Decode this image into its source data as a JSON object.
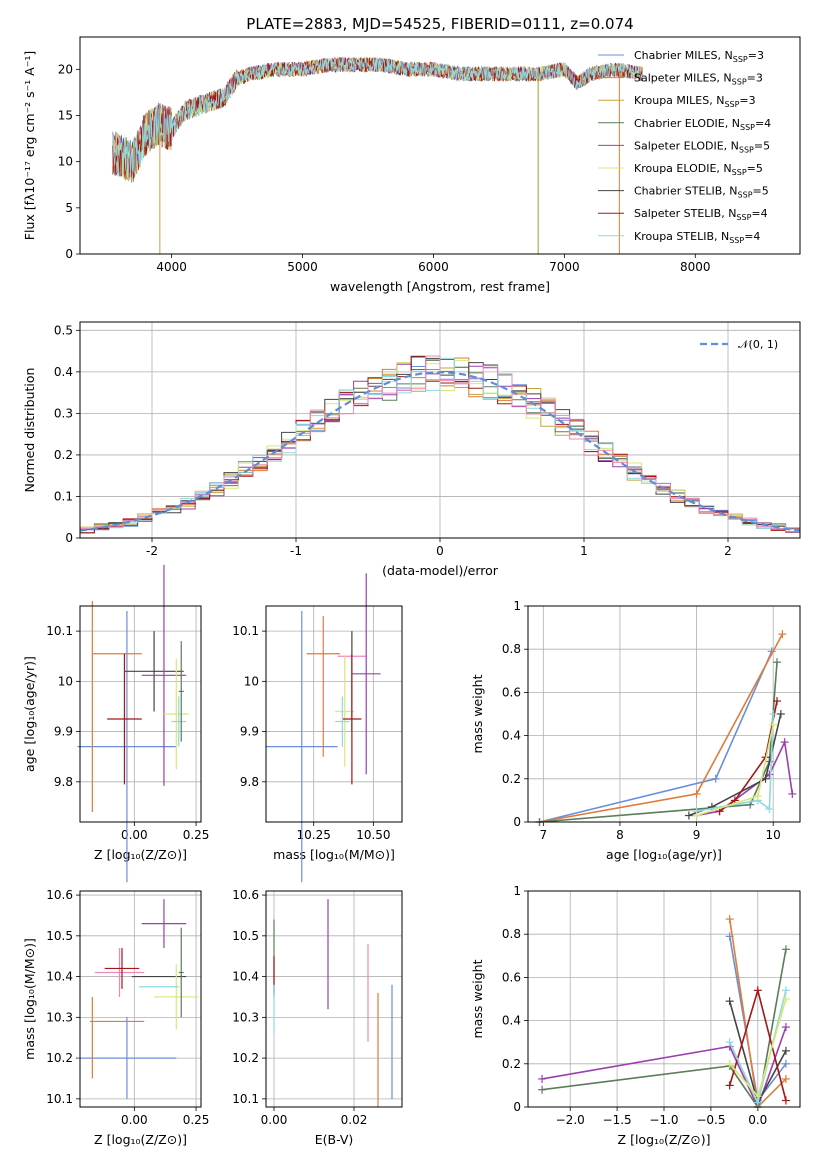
{
  "chart_data": [
    {
      "id": "spectrum",
      "type": "line",
      "title": "PLATE=2883, MJD=54525, FIBERID=0111, z=0.074",
      "xlabel": "wavelength [Angstrom, rest frame]",
      "ylabel": "Flux [fλ10⁻¹⁷ erg cm⁻² s⁻¹ A⁻¹]",
      "xlim": [
        3300,
        8800
      ],
      "ylim": [
        0,
        23.5
      ],
      "xticks": [
        4000,
        5000,
        6000,
        7000,
        8000
      ],
      "yticks": [
        0,
        5,
        10,
        15,
        20
      ],
      "grid": false,
      "legend_position": "top-right",
      "legend": [
        {
          "label": "Chabrier MILES, N",
          "sub": "SSP",
          "suffix": "=3",
          "color": "#6a8fd8"
        },
        {
          "label": "Salpeter MILES, N",
          "sub": "SSP",
          "suffix": "=3",
          "color": "#e07b39"
        },
        {
          "label": "Kroupa MILES, N",
          "sub": "SSP",
          "suffix": "=3",
          "color": "#c8a23a"
        },
        {
          "label": "Chabrier ELODIE, N",
          "sub": "SSP",
          "suffix": "=4",
          "color": "#5a7d5a"
        },
        {
          "label": "Salpeter ELODIE, N",
          "sub": "SSP",
          "suffix": "=5",
          "color": "#9b3fb0"
        },
        {
          "label": "Kroupa ELODIE, N",
          "sub": "SSP",
          "suffix": "=5",
          "color": "#d8e878"
        },
        {
          "label": "Chabrier STELIB, N",
          "sub": "SSP",
          "suffix": "=5",
          "color": "#444444"
        },
        {
          "label": "Salpeter STELIB, N",
          "sub": "SSP",
          "suffix": "=4",
          "color": "#a01818"
        },
        {
          "label": "Kroupa STELIB, N",
          "sub": "SSP",
          "suffix": "=4",
          "color": "#8fd8e0"
        }
      ],
      "continuum": {
        "x": [
          3550,
          3700,
          3800,
          3900,
          4000,
          4100,
          4200,
          4400,
          4500,
          4600,
          4800,
          5000,
          5200,
          5400,
          5600,
          5800,
          6000,
          6200,
          6400,
          6600,
          6800,
          7000,
          7100,
          7200,
          7400,
          7600
        ],
        "y": [
          11,
          10,
          13,
          14,
          13.5,
          15.5,
          16,
          17,
          19,
          19.5,
          20,
          20,
          20.5,
          20.5,
          20.5,
          20,
          20,
          19.5,
          19.5,
          19.5,
          19.5,
          20,
          18.5,
          19.5,
          20,
          19.5
        ]
      },
      "dips": [
        3910,
        6800,
        7420
      ]
    },
    {
      "id": "residuals",
      "type": "bar",
      "xlabel": "(data-model)/error",
      "ylabel": "Normed distribution",
      "xlim": [
        -2.5,
        2.5
      ],
      "ylim": [
        0,
        0.52
      ],
      "xticks": [
        -2,
        -1,
        0,
        1,
        2
      ],
      "yticks": [
        0.0,
        0.1,
        0.2,
        0.3,
        0.4,
        0.5
      ],
      "grid": true,
      "legend_position": "top-right",
      "reference": {
        "label": "𝒩(0, 1)",
        "color": "#5b8fd8"
      },
      "bin_width": 0.1
    },
    {
      "id": "z-age",
      "type": "scatter",
      "xlabel": "Z [log₁₀(Z/Z⊙)]",
      "ylabel": "age  [log₁₀(age/yr)]",
      "xlim": [
        -0.22,
        0.27
      ],
      "ylim": [
        9.72,
        10.15
      ],
      "xticks": [
        0.0,
        0.25
      ],
      "xtick_labels": [
        "0.00",
        "0.25"
      ],
      "yticks": [
        9.8,
        9.9,
        10.0,
        10.1
      ],
      "grid": true,
      "points": [
        {
          "x": -0.03,
          "y": 9.87,
          "xerr": 0.2,
          "yerr": 0.27,
          "color": "#6a8fd8"
        },
        {
          "x": -0.07,
          "y": 10.055,
          "xerr": 0.1,
          "yerr": 0.0,
          "color": "#e07b39"
        },
        {
          "x": -0.17,
          "y": 9.95,
          "xerr": 0.0,
          "yerr": 0.21,
          "color": "#e07b39"
        },
        {
          "x": 0.08,
          "y": 10.02,
          "xerr": 0.12,
          "yerr": 0.08,
          "color": "#444444"
        },
        {
          "x": 0.12,
          "y": 10.012,
          "xerr": 0.09,
          "yerr": 0.22,
          "color": "#9b3fb0"
        },
        {
          "x": 0.17,
          "y": 9.935,
          "xerr": 0.05,
          "yerr": 0.11,
          "color": "#d8e878"
        },
        {
          "x": -0.04,
          "y": 9.925,
          "xerr": 0.07,
          "yerr": 0.13,
          "color": "#a01818"
        },
        {
          "x": 0.18,
          "y": 9.92,
          "xerr": 0.03,
          "yerr": 0.05,
          "color": "#8fd8e0"
        },
        {
          "x": 0.19,
          "y": 9.98,
          "xerr": 0.01,
          "yerr": 0.1,
          "color": "#5a7d5a"
        }
      ]
    },
    {
      "id": "mass-age",
      "type": "scatter",
      "xlabel": "mass [log₁₀(M/M⊙)]",
      "ylabel": "",
      "xlim": [
        10.05,
        10.62
      ],
      "ylim": [
        9.72,
        10.15
      ],
      "xticks": [
        10.25,
        10.5
      ],
      "xtick_labels": [
        "10.25",
        "10.50"
      ],
      "yticks": [
        9.8,
        9.9,
        10.0,
        10.1
      ],
      "grid": true,
      "points": [
        {
          "x": 10.2,
          "y": 9.87,
          "xerr": 0.15,
          "yerr": 0.27,
          "color": "#6a8fd8"
        },
        {
          "x": 10.29,
          "y": 10.055,
          "xerr": 0.07,
          "yerr": 0.0,
          "color": "#e07b39"
        },
        {
          "x": 10.29,
          "y": 9.99,
          "xerr": 0.0,
          "yerr": 0.14,
          "color": "#e07b39"
        },
        {
          "x": 10.41,
          "y": 10.05,
          "xerr": 0.06,
          "yerr": 0.0,
          "color": "#ee88bb"
        },
        {
          "x": 10.41,
          "y": 10.0,
          "xerr": 0.0,
          "yerr": 0.1,
          "color": "#444444"
        },
        {
          "x": 10.47,
          "y": 10.015,
          "xerr": 0.06,
          "yerr": 0.2,
          "color": "#9b3fb0"
        },
        {
          "x": 10.38,
          "y": 9.94,
          "xerr": 0.04,
          "yerr": 0.11,
          "color": "#d8e878"
        },
        {
          "x": 10.41,
          "y": 9.925,
          "xerr": 0.04,
          "yerr": 0.13,
          "color": "#a01818"
        },
        {
          "x": 10.37,
          "y": 9.92,
          "xerr": 0.03,
          "yerr": 0.05,
          "color": "#8fd8e0"
        }
      ]
    },
    {
      "id": "age-weight",
      "type": "line",
      "xlabel": "age  [log₁₀(age/yr)]",
      "ylabel": "mass weight",
      "xlim": [
        6.8,
        10.35
      ],
      "ylim": [
        0,
        1.0
      ],
      "xticks": [
        7,
        8,
        9,
        10
      ],
      "yticks": [
        0.0,
        0.2,
        0.4,
        0.6,
        0.8,
        1.0
      ],
      "grid": true,
      "series": [
        {
          "color": "#6a8fd8",
          "x": [
            6.95,
            9.25,
            9.98
          ],
          "y": [
            0.0,
            0.2,
            0.79
          ]
        },
        {
          "color": "#e07b39",
          "x": [
            6.95,
            9.0,
            10.12
          ],
          "y": [
            0.0,
            0.13,
            0.87
          ]
        },
        {
          "color": "#5a7d5a",
          "x": [
            6.95,
            9.7,
            9.95,
            10.05
          ],
          "y": [
            0.0,
            0.08,
            0.28,
            0.74
          ]
        },
        {
          "color": "#9b3fb0",
          "x": [
            9.0,
            9.3,
            9.95,
            10.15,
            10.25
          ],
          "y": [
            0.03,
            0.05,
            0.22,
            0.37,
            0.13
          ]
        },
        {
          "color": "#444444",
          "x": [
            8.9,
            9.2,
            9.9,
            10.1
          ],
          "y": [
            0.03,
            0.07,
            0.2,
            0.5
          ]
        },
        {
          "color": "#a01818",
          "x": [
            9.3,
            9.5,
            9.9,
            10.05
          ],
          "y": [
            0.05,
            0.1,
            0.3,
            0.56
          ]
        },
        {
          "color": "#8fd8e0",
          "x": [
            9.0,
            9.8,
            9.95,
            10.0
          ],
          "y": [
            0.05,
            0.1,
            0.06,
            0.5
          ]
        },
        {
          "color": "#d8e878",
          "x": [
            9.0,
            9.8,
            10.0
          ],
          "y": [
            0.03,
            0.12,
            0.45
          ]
        }
      ]
    },
    {
      "id": "z-mass",
      "type": "scatter",
      "xlabel": "Z [log₁₀(Z/Z⊙)]",
      "ylabel": "mass [log₁₀(M/M⊙)]",
      "xlim": [
        -0.22,
        0.27
      ],
      "ylim": [
        10.08,
        10.61
      ],
      "xticks": [
        0.0,
        0.25
      ],
      "xtick_labels": [
        "0.00",
        "0.25"
      ],
      "yticks": [
        10.1,
        10.2,
        10.3,
        10.4,
        10.5,
        10.6
      ],
      "grid": true,
      "points": [
        {
          "x": -0.03,
          "y": 10.2,
          "xerr": 0.2,
          "yerr": 0.1,
          "color": "#6a8fd8"
        },
        {
          "x": -0.07,
          "y": 10.29,
          "xerr": 0.11,
          "yerr": 0.0,
          "color": "#e07b39"
        },
        {
          "x": -0.17,
          "y": 10.25,
          "xerr": 0.0,
          "yerr": 0.1,
          "color": "#e07b39"
        },
        {
          "x": -0.06,
          "y": 10.41,
          "xerr": 0.1,
          "yerr": 0.06,
          "color": "#ee88bb"
        },
        {
          "x": 0.12,
          "y": 10.53,
          "xerr": 0.09,
          "yerr": 0.06,
          "color": "#9b3fb0"
        },
        {
          "x": 0.1,
          "y": 10.4,
          "xerr": 0.11,
          "yerr": 0.0,
          "color": "#444444"
        },
        {
          "x": -0.05,
          "y": 10.42,
          "xerr": 0.07,
          "yerr": 0.05,
          "color": "#a01818"
        },
        {
          "x": 0.17,
          "y": 10.35,
          "xerr": 0.09,
          "yerr": 0.08,
          "color": "#d8e878"
        },
        {
          "x": 0.1,
          "y": 10.375,
          "xerr": 0.08,
          "yerr": 0.0,
          "color": "#8fd8e0"
        },
        {
          "x": 0.19,
          "y": 10.41,
          "xerr": 0.01,
          "yerr": 0.11,
          "color": "#5a7d5a"
        }
      ]
    },
    {
      "id": "ebv-mass",
      "type": "scatter",
      "xlabel": "E(B-V)",
      "ylabel": "",
      "xlim": [
        -0.002,
        0.032
      ],
      "ylim": [
        10.08,
        10.61
      ],
      "xticks": [
        0.0,
        0.02
      ],
      "xtick_labels": [
        "0.00",
        "0.02"
      ],
      "yticks": [
        10.1,
        10.2,
        10.3,
        10.4,
        10.5,
        10.6
      ],
      "grid": true,
      "points": [
        {
          "x": 0.0,
          "y": 10.45,
          "xerr": 0.0,
          "yerr": 0.09,
          "color": "#5a7d5a"
        },
        {
          "x": 0.0,
          "y": 10.4,
          "xerr": 0.0,
          "yerr": 0.05,
          "color": "#a01818"
        },
        {
          "x": 0.0,
          "y": 10.32,
          "xerr": 0.0,
          "yerr": 0.06,
          "color": "#8fd8e0"
        },
        {
          "x": 0.0135,
          "y": 10.455,
          "xerr": 0.0,
          "yerr": 0.135,
          "color": "#9b3fb0"
        },
        {
          "x": 0.0235,
          "y": 10.36,
          "xerr": 0.0,
          "yerr": 0.12,
          "color": "#ee88bb"
        },
        {
          "x": 0.026,
          "y": 10.22,
          "xerr": 0.0,
          "yerr": 0.14,
          "color": "#e07b39"
        },
        {
          "x": 0.0295,
          "y": 10.24,
          "xerr": 0.0,
          "yerr": 0.14,
          "color": "#6a8fd8"
        }
      ]
    },
    {
      "id": "z-weight",
      "type": "line",
      "xlabel": "Z [log₁₀(Z/Z⊙)]",
      "ylabel": "mass weight",
      "xlim": [
        -2.45,
        0.45
      ],
      "ylim": [
        0,
        1.0
      ],
      "xticks": [
        -2.0,
        -1.5,
        -1.0,
        -0.5,
        0.0
      ],
      "xtick_labels": [
        "−2.0",
        "−1.5",
        "−1.0",
        "−0.5",
        "0.0"
      ],
      "yticks": [
        0.0,
        0.2,
        0.4,
        0.6,
        0.8,
        1.0
      ],
      "grid": true,
      "series": [
        {
          "color": "#6a8fd8",
          "x": [
            -0.3,
            0.0,
            0.3
          ],
          "y": [
            0.79,
            0.03,
            0.2
          ]
        },
        {
          "color": "#e07b39",
          "x": [
            -0.3,
            0.0,
            0.3
          ],
          "y": [
            0.87,
            0.0,
            0.13
          ]
        },
        {
          "color": "#9b3fb0",
          "x": [
            -2.3,
            -0.3,
            0.0,
            0.3
          ],
          "y": [
            0.13,
            0.28,
            0.0,
            0.37
          ]
        },
        {
          "color": "#5a7d5a",
          "x": [
            -2.3,
            -0.3,
            0.0,
            0.3
          ],
          "y": [
            0.08,
            0.19,
            0.0,
            0.73
          ]
        },
        {
          "color": "#444444",
          "x": [
            -0.3,
            0.0,
            0.3
          ],
          "y": [
            0.49,
            0.02,
            0.26
          ]
        },
        {
          "color": "#a01818",
          "x": [
            -0.3,
            0.0,
            0.3
          ],
          "y": [
            0.1,
            0.54,
            0.03
          ]
        },
        {
          "color": "#8fd8e0",
          "x": [
            -0.3,
            0.0,
            0.3
          ],
          "y": [
            0.3,
            0.02,
            0.54
          ]
        },
        {
          "color": "#d8e878",
          "x": [
            -0.3,
            0.0,
            0.3
          ],
          "y": [
            0.2,
            0.05,
            0.5
          ]
        }
      ]
    }
  ]
}
